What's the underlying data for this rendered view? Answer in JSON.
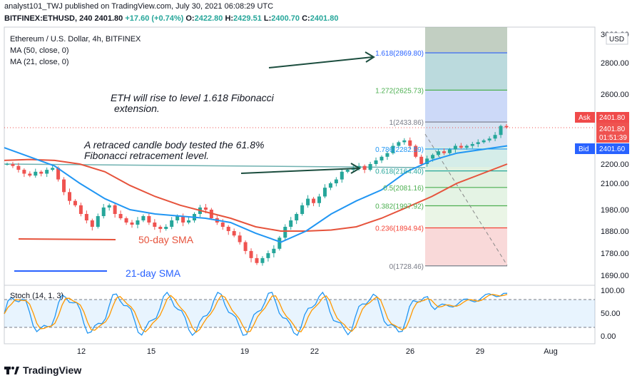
{
  "header": {
    "publish_line": "analyst101_TWJ published on TradingView.com, July 30, 2021 06:08:29 UTC",
    "symbol": "BITFINEX:ETHUSD, 240",
    "last": "2401.80",
    "change": "+17.60 (+0.74%)",
    "o_label": "O:",
    "o": "2422.80",
    "h_label": "H:",
    "h": "2429.51",
    "l_label": "L:",
    "l": "2400.70",
    "c_label": "C:",
    "c": "2401.80"
  },
  "legend": {
    "title": "Ethereum / U.S. Dollar, 4h, BITFINEX",
    "ma50": "MA (50, close, 0)",
    "ma21": "MA (21, close, 0)"
  },
  "annotations": {
    "fib_target_line1": "ETH will rise to level 1.618 Fibonacci",
    "fib_target_line2": "extension.",
    "retrace_line1": "A retraced candle body tested the 61.8%",
    "retrace_line2": "Fibonacci retracement level.",
    "sma50_label": "50-day SMA",
    "sma21_label": "21-day SMA"
  },
  "price_axis": {
    "currency": "USD",
    "ticks": [
      "3000.00",
      "2800.00",
      "2600.00",
      "2400.00",
      "2200.00",
      "2100.00",
      "1980.00",
      "1880.00",
      "1780.00",
      "1690.00"
    ],
    "ask_label": "Ask",
    "ask_value": "2401.80",
    "last_value": "2401.80",
    "countdown": "01:51:39",
    "bid_label": "Bid",
    "bid_value": "2401.60"
  },
  "fib_levels": [
    {
      "label": "1.618(2869.80)",
      "value": 2869.8,
      "color": "#2962ff"
    },
    {
      "label": "1.272(2625.73)",
      "value": 2625.73,
      "color": "#4caf50"
    },
    {
      "label": "1(2433.86)",
      "value": 2433.86,
      "color": "#787b86"
    },
    {
      "label": "0.786(2282.59)",
      "value": 2282.59,
      "color": "#2196f3"
    },
    {
      "label": "0.618(2164.40)",
      "value": 2164.4,
      "color": "#26a69a"
    },
    {
      "label": "0.5(2081.16)",
      "value": 2081.16,
      "color": "#4caf50"
    },
    {
      "label": "0.382(1997.92)",
      "value": 1997.92,
      "color": "#4caf50"
    },
    {
      "label": "0.236(1894.94)",
      "value": 1894.94,
      "color": "#f44336"
    },
    {
      "label": "0(1728.46)",
      "value": 1728.46,
      "color": "#787b86"
    }
  ],
  "stoch": {
    "label": "Stoch (14, 1, 3)",
    "ticks": [
      "100.00",
      "50.00",
      "0.00"
    ]
  },
  "time_axis": {
    "ticks": [
      "12",
      "15",
      "19",
      "22",
      "26",
      "29",
      "Aug"
    ]
  },
  "colors": {
    "up": "#26a69a",
    "down": "#ef5350",
    "ma50": "#e6533c",
    "ma21": "#2196f3",
    "ask": "#f04a4a",
    "bid": "#2962ff",
    "stoch_k": "#2196f3",
    "stoch_d": "#ff9800"
  },
  "brand": "TradingView",
  "chart_data": {
    "type": "line",
    "title": "Ethereum / U.S. Dollar, 4h, BITFINEX",
    "x": [
      "10",
      "11",
      "12",
      "13",
      "14",
      "15",
      "16",
      "17",
      "18",
      "19",
      "20",
      "21",
      "22",
      "23",
      "24",
      "25",
      "26",
      "27",
      "28",
      "29",
      "30"
    ],
    "series": [
      {
        "name": "MA (50, close, 0)",
        "values": [
          2220,
          2225,
          2220,
          2200,
          2160,
          2090,
          2040,
          2000,
          1970,
          1940,
          1900,
          1880,
          1880,
          1885,
          1900,
          1940,
          1990,
          2040,
          2100,
          2150,
          2200
        ]
      },
      {
        "name": "MA (21, close, 0)",
        "values": [
          2290,
          2240,
          2190,
          2100,
          2030,
          1980,
          1960,
          1950,
          1940,
          1920,
          1870,
          1830,
          1880,
          1960,
          2020,
          2070,
          2160,
          2220,
          2260,
          2280,
          2300
        ]
      }
    ],
    "ylim": [
      1690,
      3000
    ]
  }
}
